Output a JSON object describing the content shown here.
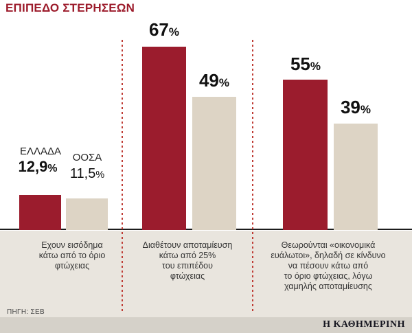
{
  "title": "ΕΠΙΠΕΔΟ ΣΤΕΡΗΣΕΩΝ",
  "source": "ΠΗΓΗ: ΣΕΒ",
  "brand": "Η ΚΑΘΗΜΕΡΙΝΗ",
  "legend": {
    "greece": "ΕΛΛΑΔΑ",
    "oecd": "ΟΟΣΑ"
  },
  "units": {
    "percent": "%"
  },
  "groups": [
    {
      "label_lines": [
        "Εχουν εισόδημα",
        "κάτω από το όριο",
        "φτώχειας"
      ],
      "greece": "12,9",
      "oecd": "11,5"
    },
    {
      "label_lines": [
        "Διαθέτουν αποταμίευση",
        "κάτω από 25%",
        "του επιπέδου",
        "φτώχειας"
      ],
      "greece": "67",
      "oecd": "49"
    },
    {
      "label_lines": [
        "Θεωρούνται «οικονομικά",
        "ευάλωτοι», δηλαδή σε κίνδυνο",
        "να πέσουν κάτω από",
        "το όριο φτώχειας, λόγω",
        "χαμηλής αποταμίευσης"
      ],
      "greece": "55",
      "oecd": "39"
    }
  ],
  "chart_data": {
    "type": "bar",
    "title": "ΕΠΙΠΕΔΟ ΣΤΕΡΗΣΕΩΝ",
    "categories": [
      "Εχουν εισόδημα κάτω από το όριο φτώχειας",
      "Διαθέτουν αποταμίευση κάτω από 25% του επιπέδου φτώχειας",
      "Θεωρούνται «οικονομικά ευάλωτοι», δηλαδή σε κίνδυνο να πέσουν κάτω από το όριο φτώχειας, λόγω χαμηλής αποταμίευσης"
    ],
    "series": [
      {
        "name": "ΕΛΛΑΔΑ",
        "values": [
          12.9,
          67,
          55
        ]
      },
      {
        "name": "ΟΟΣΑ",
        "values": [
          11.5,
          49,
          39
        ]
      }
    ],
    "unit": "%",
    "ylim": [
      0,
      70
    ],
    "grid": false,
    "legend_position": "inline-first-group",
    "colors": {
      "ΕΛΛΑΔΑ": "#9b1c2d",
      "ΟΟΣΑ": "#ddd4c5"
    },
    "source": "ΠΗΓΗ: ΣΕΒ"
  }
}
